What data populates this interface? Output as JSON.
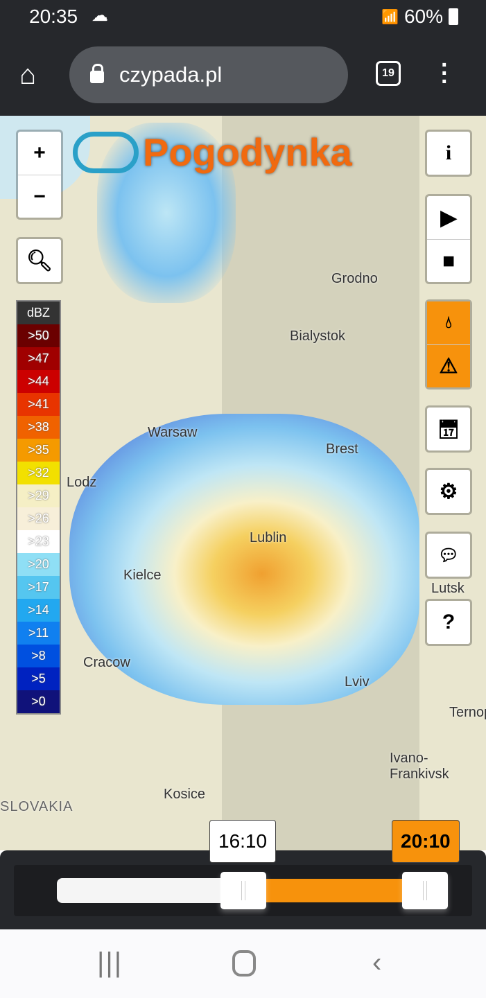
{
  "status": {
    "time": "20:35",
    "battery": "60%"
  },
  "browser": {
    "url": "czypada.pl",
    "tab_count": "19"
  },
  "logo": "Pogodynka",
  "map": {
    "cities": [
      "Grodno",
      "Bialystok",
      "Warsaw",
      "Brest",
      "Lodz",
      "Lublin",
      "Kielce",
      "Lutsk",
      "Cracow",
      "Lviv",
      "Ternopil",
      "Ivano-Frankivsk",
      "Kosice",
      "SLOVAKIA"
    ]
  },
  "controls": {
    "zoom_in": "+",
    "zoom_out": "−",
    "info": "i",
    "help": "?"
  },
  "legend": {
    "title": "dBZ",
    "items": [
      {
        "label": ">50",
        "color": "#6b0000"
      },
      {
        "label": ">47",
        "color": "#a00000"
      },
      {
        "label": ">44",
        "color": "#cc0000"
      },
      {
        "label": ">41",
        "color": "#e83400"
      },
      {
        "label": ">38",
        "color": "#f06200"
      },
      {
        "label": ">35",
        "color": "#f59a00"
      },
      {
        "label": ">32",
        "color": "#f2e000"
      },
      {
        "label": ">29",
        "color": "#f5efc5"
      },
      {
        "label": ">26",
        "color": "#f7efd9"
      },
      {
        "label": ">23",
        "color": "#ffffff"
      },
      {
        "label": ">20",
        "color": "#8fdff5"
      },
      {
        "label": ">17",
        "color": "#55c6f0"
      },
      {
        "label": ">14",
        "color": "#22a8f0"
      },
      {
        "label": ">11",
        "color": "#1080f0"
      },
      {
        "label": ">8",
        "color": "#0050e0"
      },
      {
        "label": ">5",
        "color": "#0022c0"
      },
      {
        "label": ">0",
        "color": "#10127a"
      }
    ]
  },
  "timeline": {
    "start": "16:10",
    "end": "20:10",
    "accent": "#f7920c"
  }
}
